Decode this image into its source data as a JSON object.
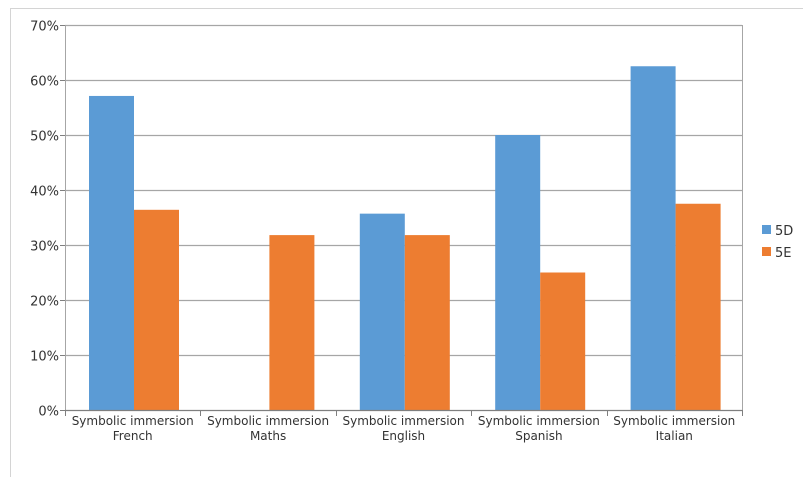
{
  "chart_data": {
    "type": "bar",
    "categories": [
      [
        "Symbolic immersion",
        "French"
      ],
      [
        "Symbolic immersion",
        "Maths"
      ],
      [
        "Symbolic immersion",
        "English"
      ],
      [
        "Symbolic immersion",
        "Spanish"
      ],
      [
        "Symbolic immersion",
        "Italian"
      ]
    ],
    "series": [
      {
        "name": "5D",
        "color": "#5b9bd5",
        "values": [
          57.1,
          null,
          35.7,
          50.0,
          62.5
        ]
      },
      {
        "name": "5E",
        "color": "#ed7d31",
        "values": [
          36.4,
          31.8,
          31.8,
          25.0,
          37.5
        ]
      }
    ],
    "ylim": [
      0,
      70
    ],
    "yticks": [
      "0%",
      "10%",
      "20%",
      "30%",
      "40%",
      "50%",
      "60%",
      "70%"
    ],
    "grid": true,
    "legend_position": "right"
  }
}
